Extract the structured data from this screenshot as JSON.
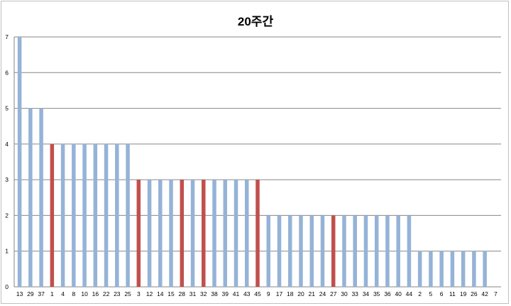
{
  "chart_data": {
    "type": "bar",
    "title": "20주간",
    "xlabel": "",
    "ylabel": "",
    "ylim": [
      0,
      7
    ],
    "y_ticks": [
      "0",
      "1",
      "2",
      "3",
      "4",
      "5",
      "6",
      "7"
    ],
    "grid": true,
    "legend": "none",
    "colors": {
      "default": "#95b3d7",
      "highlight": "#c0504d"
    },
    "categories": [
      "13",
      "29",
      "37",
      "1",
      "4",
      "8",
      "10",
      "16",
      "22",
      "23",
      "25",
      "3",
      "12",
      "14",
      "15",
      "28",
      "31",
      "32",
      "38",
      "39",
      "41",
      "43",
      "45",
      "9",
      "17",
      "18",
      "20",
      "21",
      "24",
      "27",
      "30",
      "33",
      "34",
      "35",
      "36",
      "40",
      "44",
      "2",
      "5",
      "6",
      "11",
      "19",
      "26",
      "42",
      "7"
    ],
    "values": [
      7,
      5,
      5,
      4,
      4,
      4,
      4,
      4,
      4,
      4,
      4,
      3,
      3,
      3,
      3,
      3,
      3,
      3,
      3,
      3,
      3,
      3,
      3,
      2,
      2,
      2,
      2,
      2,
      2,
      2,
      2,
      2,
      2,
      2,
      2,
      2,
      2,
      1,
      1,
      1,
      1,
      1,
      1,
      1,
      0
    ],
    "highlighted": [
      "1",
      "3",
      "28",
      "32",
      "45",
      "27"
    ]
  }
}
